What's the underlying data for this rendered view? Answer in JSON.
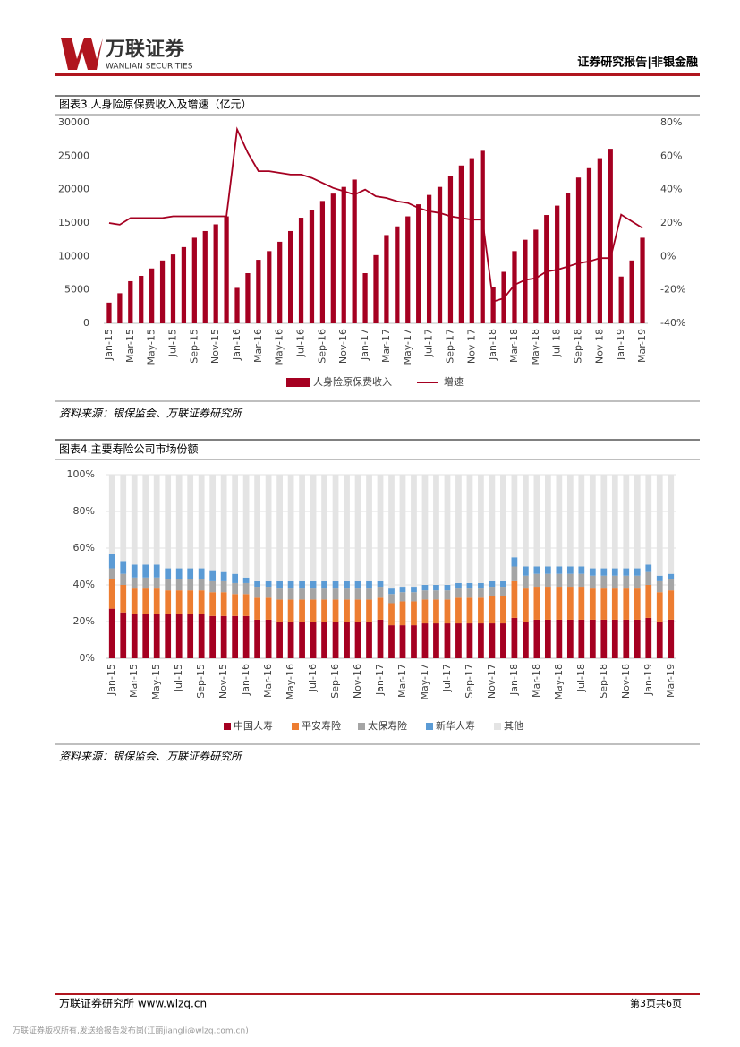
{
  "header": {
    "company": "万联证券",
    "company_en": "WANLIAN SECURITIES",
    "report_type": "证券研究报告|非银金融"
  },
  "sources": [
    "资料来源：银保监会、万联证券研究所",
    "资料来源：银保监会、万联证券研究所"
  ],
  "footer": {
    "left": "万联证券研究所 www.wlzq.cn",
    "page": "第3页共6页",
    "notice": "万联证券版权所有,发送给报告发布岗(江丽jiangli@wlzq.com.cn)"
  },
  "chart_data": [
    {
      "type": "bar",
      "title": "图表3.人身险原保费收入及增速（亿元）",
      "categories": [
        "Jan-15",
        null,
        "Mar-15",
        null,
        "May-15",
        null,
        "Jul-15",
        null,
        "Sep-15",
        null,
        "Nov-15",
        null,
        "Jan-16",
        null,
        "Mar-16",
        null,
        "May-16",
        null,
        "Jul-16",
        null,
        "Sep-16",
        null,
        "Nov-16",
        null,
        "Jan-17",
        null,
        "Mar-17",
        null,
        "May-17",
        null,
        "Jul-17",
        null,
        "Sep-17",
        null,
        "Nov-17",
        null,
        "Jan-18",
        null,
        "Mar-18",
        null,
        "May-18",
        null,
        "Jul-18",
        null,
        "Sep-18",
        null,
        "Nov-18",
        null,
        "Jan-19",
        null,
        "Mar-19"
      ],
      "series": [
        {
          "name": "人身险原保费收入",
          "type": "bar",
          "color": "#a50021",
          "values": [
            3100,
            4500,
            6300,
            7100,
            8200,
            9400,
            10300,
            11400,
            12800,
            13800,
            14800,
            16000,
            5300,
            7500,
            9500,
            10800,
            12200,
            13800,
            15800,
            17000,
            18300,
            19400,
            20400,
            21500,
            7500,
            10200,
            13200,
            14500,
            16000,
            17800,
            19200,
            20400,
            22000,
            23600,
            24700,
            25800,
            5400,
            7700,
            10800,
            12500,
            14000,
            16200,
            17600,
            19500,
            21800,
            23200,
            24700,
            26100,
            7000,
            9400,
            12800
          ]
        },
        {
          "name": "增速",
          "type": "line",
          "axis": "y2",
          "color": "#a50021",
          "values": [
            20,
            19,
            23,
            23,
            23,
            23,
            24,
            24,
            24,
            24,
            24,
            24,
            76,
            62,
            51,
            51,
            50,
            49,
            49,
            47,
            44,
            41,
            39,
            37,
            40,
            36,
            35,
            33,
            32,
            29,
            27,
            26,
            24,
            23,
            22,
            22,
            -27,
            -25,
            -17,
            -14,
            -13,
            -9,
            -8,
            -6,
            -4,
            -3,
            -1,
            -1,
            25,
            21,
            17
          ]
        }
      ],
      "ylim": [
        0,
        30000
      ],
      "yticks": [
        0,
        5000,
        10000,
        15000,
        20000,
        25000,
        30000
      ],
      "y2lim": [
        -40,
        80
      ],
      "y2ticks": [
        {
          "value": -40,
          "label": "-40%"
        },
        {
          "value": -20,
          "label": "-20%"
        },
        {
          "value": 0,
          "label": "0%"
        },
        {
          "value": 20,
          "label": "20%"
        },
        {
          "value": 40,
          "label": "40%"
        },
        {
          "value": 60,
          "label": "60%"
        },
        {
          "value": 80,
          "label": "80%"
        }
      ],
      "grid": false
    },
    {
      "type": "stackedbar",
      "title": "图表4.主要寿险公司市场份额",
      "categories": [
        "Jan-15",
        null,
        "Mar-15",
        null,
        "May-15",
        null,
        "Jul-15",
        null,
        "Sep-15",
        null,
        "Nov-15",
        null,
        "Jan-16",
        null,
        "Mar-16",
        null,
        "May-16",
        null,
        "Jul-16",
        null,
        "Sep-16",
        null,
        "Nov-16",
        null,
        "Jan-17",
        null,
        "Mar-17",
        null,
        "May-17",
        null,
        "Jul-17",
        null,
        "Sep-17",
        null,
        "Nov-17",
        null,
        "Jan-18",
        null,
        "Mar-18",
        null,
        "May-18",
        null,
        "Jul-18",
        null,
        "Sep-18",
        null,
        "Nov-18",
        null,
        "Jan-19",
        null,
        "Mar-19"
      ],
      "series": [
        {
          "name": "中国人寿",
          "color": "#a50021",
          "values": [
            27,
            25,
            24,
            24,
            24,
            24,
            24,
            24,
            24,
            23,
            23,
            23,
            23,
            21,
            21,
            20,
            20,
            20,
            20,
            20,
            20,
            20,
            20,
            20,
            21,
            18,
            18,
            18,
            19,
            19,
            19,
            19,
            19,
            19,
            19,
            19,
            22,
            20,
            21,
            21,
            21,
            21,
            21,
            21,
            21,
            21,
            21,
            21,
            22,
            20,
            21
          ]
        },
        {
          "name": "平安寿险",
          "color": "#ed7d31",
          "values": [
            16,
            15,
            14,
            14,
            14,
            13,
            13,
            13,
            13,
            13,
            13,
            12,
            12,
            12,
            12,
            12,
            12,
            12,
            12,
            12,
            12,
            12,
            12,
            12,
            12,
            12,
            13,
            13,
            13,
            13,
            13,
            14,
            14,
            14,
            15,
            15,
            20,
            18,
            18,
            18,
            18,
            18,
            18,
            17,
            17,
            17,
            17,
            17,
            18,
            16,
            16
          ]
        },
        {
          "name": "太保寿险",
          "color": "#a5a5a5",
          "values": [
            6,
            6,
            6,
            6,
            6,
            6,
            6,
            6,
            6,
            6,
            6,
            6,
            6,
            6,
            6,
            6,
            6,
            6,
            6,
            6,
            6,
            6,
            6,
            6,
            6,
            5,
            5,
            5,
            5,
            5,
            5,
            5,
            5,
            5,
            5,
            5,
            8,
            7,
            7,
            7,
            7,
            7,
            7,
            7,
            7,
            7,
            7,
            7,
            7,
            6,
            6
          ]
        },
        {
          "name": "新华人寿",
          "color": "#5b9bd5",
          "values": [
            8,
            7,
            7,
            7,
            7,
            6,
            6,
            6,
            6,
            6,
            5,
            5,
            3,
            3,
            3,
            4,
            4,
            4,
            4,
            4,
            4,
            4,
            4,
            4,
            3,
            3,
            3,
            3,
            3,
            3,
            3,
            3,
            3,
            3,
            3,
            3,
            5,
            5,
            4,
            4,
            4,
            4,
            4,
            4,
            4,
            4,
            4,
            4,
            4,
            3,
            3
          ]
        },
        {
          "name": "其他",
          "color": "#e4e4e4",
          "values": [
            43,
            47,
            49,
            49,
            49,
            51,
            51,
            51,
            51,
            52,
            53,
            54,
            56,
            58,
            58,
            58,
            58,
            58,
            58,
            58,
            58,
            58,
            58,
            58,
            58,
            62,
            61,
            61,
            60,
            60,
            60,
            59,
            59,
            59,
            58,
            58,
            45,
            50,
            50,
            50,
            50,
            50,
            50,
            51,
            51,
            51,
            51,
            51,
            49,
            55,
            54
          ]
        }
      ],
      "ylim": [
        0,
        100
      ],
      "yticks": [
        {
          "value": 0,
          "label": "0%"
        },
        {
          "value": 20,
          "label": "20%"
        },
        {
          "value": 40,
          "label": "40%"
        },
        {
          "value": 60,
          "label": "60%"
        },
        {
          "value": 80,
          "label": "80%"
        },
        {
          "value": 100,
          "label": "100%"
        }
      ],
      "grid": true
    }
  ]
}
